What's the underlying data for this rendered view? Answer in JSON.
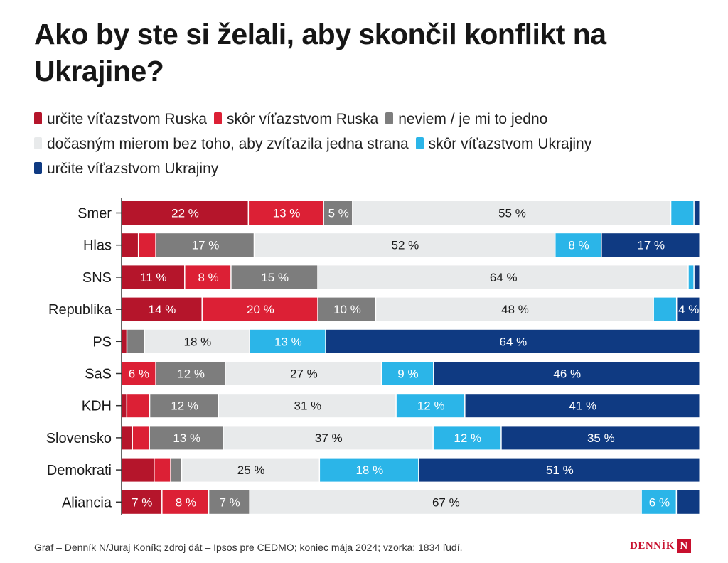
{
  "chart_data": {
    "type": "bar",
    "orientation": "horizontal",
    "stacked": true,
    "normalized": true,
    "title": "Ako by ste si želali, aby skončil konflikt na Ukrajine?",
    "categories": [
      "Smer",
      "Hlas",
      "SNS",
      "Republika",
      "PS",
      "SaS",
      "KDH",
      "Slovensko",
      "Demokrati",
      "Aliancia"
    ],
    "series": [
      {
        "name": "určite víťazstvom Ruska",
        "color": "#b5152b",
        "values": [
          22,
          3,
          11,
          14,
          1,
          0,
          1,
          2,
          6,
          7
        ],
        "labels": [
          "22 %",
          "",
          "11 %",
          "14 %",
          "",
          "",
          "",
          "",
          "",
          "7 %"
        ]
      },
      {
        "name": "skôr víťazstvom Ruska",
        "color": "#dc2035",
        "values": [
          13,
          3,
          8,
          20,
          0,
          6,
          4,
          3,
          3,
          8
        ],
        "labels": [
          "13 %",
          "",
          "8 %",
          "20 %",
          "",
          "6 %",
          "",
          "",
          "",
          "8 %"
        ]
      },
      {
        "name": "neviem / je mi to jedno",
        "color": "#7d7d7d",
        "values": [
          5,
          17,
          15,
          10,
          3,
          12,
          12,
          13,
          2,
          7
        ],
        "labels": [
          "5 %",
          "17 %",
          "15 %",
          "10 %",
          "",
          "12 %",
          "12 %",
          "13 %",
          "",
          "7 %"
        ]
      },
      {
        "name": "dočasným mierom bez toho, aby zvíťazila jedna strana",
        "color": "#e8eaeb",
        "values": [
          55,
          52,
          64,
          48,
          18,
          27,
          31,
          37,
          25,
          67
        ],
        "labels": [
          "55 %",
          "52 %",
          "64 %",
          "48 %",
          "18 %",
          "27 %",
          "31 %",
          "37 %",
          "25 %",
          "67 %"
        ]
      },
      {
        "name": "skôr víťazstvom Ukrajiny",
        "color": "#2bb5e8",
        "values": [
          4,
          8,
          1,
          4,
          13,
          9,
          12,
          12,
          18,
          6
        ],
        "labels": [
          "",
          "8 %",
          "",
          "",
          "13 %",
          "9 %",
          "12 %",
          "12 %",
          "18 %",
          "6 %"
        ]
      },
      {
        "name": "určite víťazstvom Ukrajiny",
        "color": "#0f3a82",
        "values": [
          1,
          17,
          1,
          4,
          64,
          46,
          41,
          35,
          51,
          4
        ],
        "labels": [
          "",
          "17 %",
          "",
          "4 %",
          "64 %",
          "46 %",
          "41 %",
          "35 %",
          "51 %",
          ""
        ]
      }
    ],
    "legend_position": "top-left",
    "grid": false,
    "xlim": [
      0,
      100
    ]
  },
  "footer": {
    "source": "Graf – Denník N/Juraj Koník; zdroj dát – Ipsos pre CEDMO; koniec mája 2024; vzorka: 1834 ľudí.",
    "logo_text": "DENNÍK",
    "logo_mark": "N"
  }
}
